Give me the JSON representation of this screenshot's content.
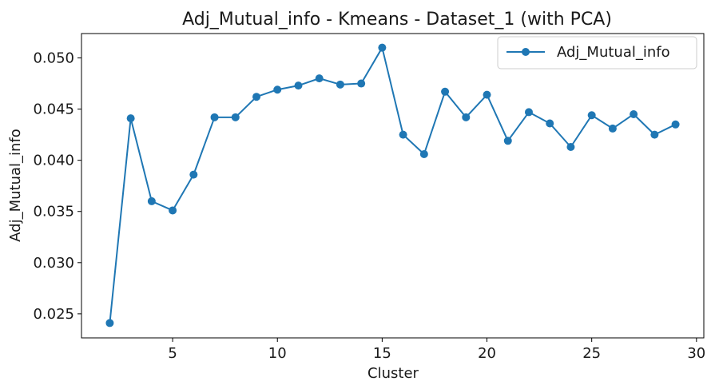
{
  "chart_data": {
    "type": "line",
    "title": "Adj_Mutual_info - Kmeans - Dataset_1 (with PCA)",
    "xlabel": "Cluster",
    "ylabel": "Adj_Mutual_info",
    "xlim": [
      0.65,
      30.35
    ],
    "ylim": [
      0.02265,
      0.05238
    ],
    "xticks": [
      5,
      10,
      15,
      20,
      25,
      30
    ],
    "xtick_labels": [
      "5",
      "10",
      "15",
      "20",
      "25",
      "30"
    ],
    "yticks": [
      0.025,
      0.03,
      0.035,
      0.04,
      0.045,
      0.05
    ],
    "ytick_labels": [
      "0.025",
      "0.030",
      "0.035",
      "0.040",
      "0.045",
      "0.050"
    ],
    "grid": false,
    "legend": {
      "position": "top-right",
      "entries": [
        "Adj_Mutual_info"
      ]
    },
    "series": [
      {
        "name": "Adj_Mutual_info",
        "color": "#1f77b4",
        "marker": "circle",
        "x": [
          2,
          3,
          4,
          5,
          6,
          7,
          8,
          9,
          10,
          11,
          12,
          13,
          14,
          15,
          16,
          17,
          18,
          19,
          20,
          21,
          22,
          23,
          24,
          25,
          26,
          27,
          28,
          29
        ],
        "y": [
          0.0241,
          0.0441,
          0.036,
          0.0351,
          0.0386,
          0.0442,
          0.0442,
          0.0462,
          0.0469,
          0.0473,
          0.048,
          0.0474,
          0.0475,
          0.051,
          0.0425,
          0.0406,
          0.0467,
          0.0442,
          0.0464,
          0.0419,
          0.0447,
          0.0436,
          0.0413,
          0.0444,
          0.0431,
          0.0445,
          0.0425,
          0.0435
        ]
      }
    ]
  }
}
